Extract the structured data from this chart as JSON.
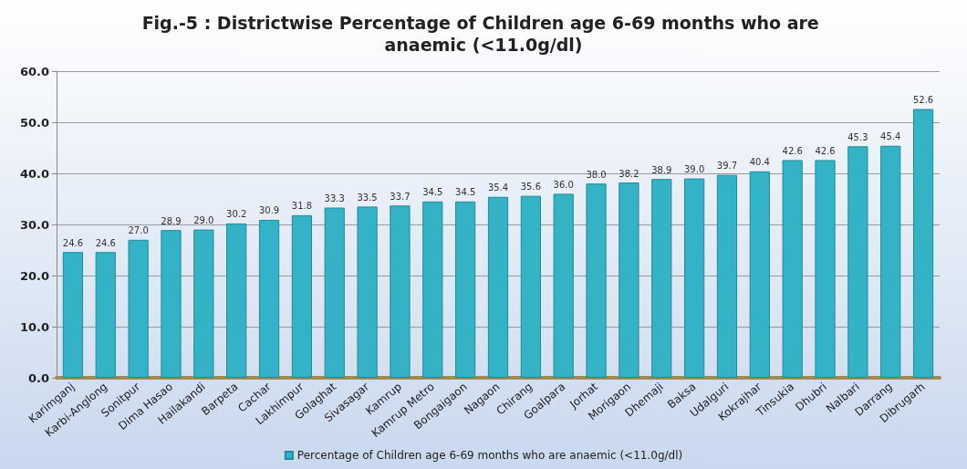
{
  "chart_data": {
    "type": "bar",
    "title": "Fig.-5 : Districtwise Percentage of Children age 6-69 months who are anaemic (<11.0g/dl)",
    "categories": [
      "Karimganj",
      "Karbi-Anglong",
      "Sonitpur",
      "Dima Hasao",
      "Hailakandi",
      "Barpeta",
      "Cachar",
      "Lakhimpur",
      "Golaghat",
      "Sivasagar",
      "Kamrup",
      "Kamrup Metro",
      "Bongaigaon",
      "Nagaon",
      "Chirang",
      "Goalpara",
      "Jorhat",
      "Morigaon",
      "Dhemaji",
      "Baksa",
      "Udalguri",
      "Kokrajhar",
      "Tinsukia",
      "Dhubri",
      "Nalbari",
      "Darrang",
      "Dibrugarh"
    ],
    "series": [
      {
        "name": "Percentage of Children age 6-69 months who are anaemic (<11.0g/dl)",
        "color": "#35b3c6",
        "values": [
          24.6,
          24.6,
          27.0,
          28.9,
          29.0,
          30.2,
          30.9,
          31.8,
          33.3,
          33.5,
          33.7,
          34.5,
          34.5,
          35.4,
          35.6,
          36.0,
          38.0,
          38.2,
          38.9,
          39.0,
          39.7,
          40.4,
          42.6,
          42.6,
          45.3,
          45.4,
          52.6
        ],
        "value_labels": [
          "24.6",
          "24.6",
          "27.0",
          "28.9",
          "29.0",
          "30.2",
          "30.9",
          "31.8",
          "33.3",
          "33.5",
          "33.7",
          "34.5",
          "34.5",
          "35.4",
          "35.6",
          "36.0",
          "38.0",
          "38.2",
          "38.9",
          "39.0",
          "39.7",
          "40.4",
          "42.6",
          "42.6",
          "45.3",
          "45.4",
          "52.6"
        ]
      }
    ],
    "ylim": [
      0,
      60
    ],
    "yticks": [
      {
        "value": 0,
        "label": "0.0"
      },
      {
        "value": 10,
        "label": "10.0"
      },
      {
        "value": 20,
        "label": "20.0"
      },
      {
        "value": 30,
        "label": "30.0"
      },
      {
        "value": 40,
        "label": "40.0"
      },
      {
        "value": 50,
        "label": "50.0"
      },
      {
        "value": 60,
        "label": "60.0"
      }
    ],
    "grid": "y",
    "legend": "bottom"
  }
}
